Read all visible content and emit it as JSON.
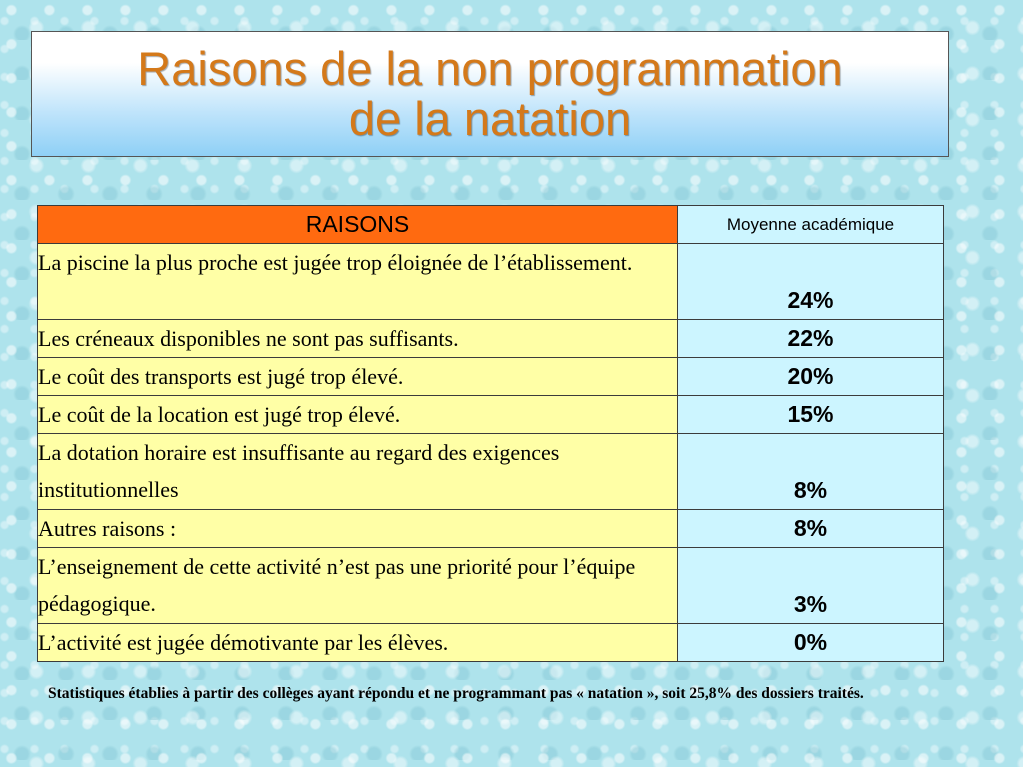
{
  "title": {
    "line1": "Raisons de la non programmation",
    "line2": "de la natation"
  },
  "table": {
    "headers": {
      "reasons": "RAISONS",
      "average": "Moyenne académique"
    },
    "rows": [
      {
        "reason": "La piscine la plus proche est jugée trop éloignée de l’établissement.",
        "value": "24%"
      },
      {
        "reason": "Les créneaux disponibles ne sont pas suffisants.",
        "value": "22%"
      },
      {
        "reason": "Le coût des transports est jugé trop élevé.",
        "value": "20%"
      },
      {
        "reason": "Le coût de la location est jugé trop élevé.",
        "value": "15%"
      },
      {
        "reason": " La dotation horaire est insuffisante au regard des exigences institutionnelles",
        "value": "8%"
      },
      {
        "reason": "Autres raisons :",
        "value": "8%"
      },
      {
        "reason": " L’enseignement de cette activité n’est pas une priorité pour l’équipe pédagogique.",
        "value": "3%"
      },
      {
        "reason": " L’activité est jugée démotivante par les élèves.",
        "value": "0%"
      }
    ]
  },
  "footnote": "Statistiques établies à partir des collèges ayant répondu et ne programmant pas « natation », soit 25,8% des dossiers traités.",
  "colors": {
    "title_text": "#d4791a",
    "header_orange": "#ff6a10",
    "value_cell": "#ccf5ff",
    "reason_cell": "#ffffa6",
    "background": "#aee3ec"
  }
}
